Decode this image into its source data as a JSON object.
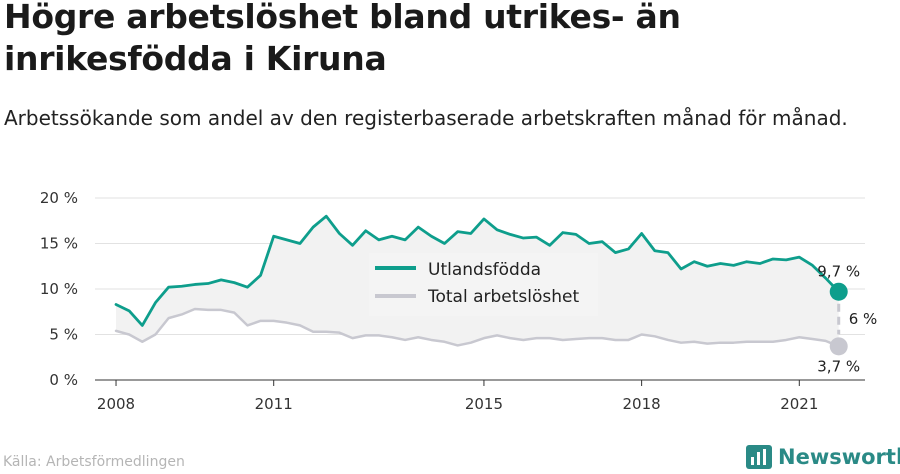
{
  "title": "Högre arbetslöshet bland utrikes- än inrikesfödda i Kiruna",
  "subtitle": "Arbetssökande som andel av den registerbaserade arbetskraften månad för månad.",
  "source": "Källa: Arbetsförmedlingen",
  "brand": "Newsworthy",
  "colors": {
    "foreign": "#0e9e8c",
    "total": "#c8c8d0",
    "band": "#f2f2f2"
  },
  "chart_data": {
    "type": "line",
    "x_unit": "year (month resolution)",
    "xlim": [
      2007.6,
      2022.25
    ],
    "ylim": [
      0,
      20
    ],
    "yticks": [
      0,
      5,
      10,
      15,
      20
    ],
    "ytick_labels": [
      "0 %",
      "5 %",
      "10 %",
      "15 %",
      "20 %"
    ],
    "xticks": [
      2008,
      2011,
      2015,
      2018,
      2021
    ],
    "xtick_labels": [
      "2008",
      "2011",
      "2015",
      "2018",
      "2021"
    ],
    "grid": "horizontal",
    "legend_position": "center",
    "series": [
      {
        "name": "Utlandsfödda",
        "color": "#0e9e8c",
        "x": [
          2008.0,
          2008.25,
          2008.5,
          2008.75,
          2009.0,
          2009.25,
          2009.5,
          2009.75,
          2010.0,
          2010.25,
          2010.5,
          2010.75,
          2011.0,
          2011.25,
          2011.5,
          2011.75,
          2012.0,
          2012.25,
          2012.5,
          2012.75,
          2013.0,
          2013.25,
          2013.5,
          2013.75,
          2014.0,
          2014.25,
          2014.5,
          2014.75,
          2015.0,
          2015.25,
          2015.5,
          2015.75,
          2016.0,
          2016.25,
          2016.5,
          2016.75,
          2017.0,
          2017.25,
          2017.5,
          2017.75,
          2018.0,
          2018.25,
          2018.5,
          2018.75,
          2019.0,
          2019.25,
          2019.5,
          2019.75,
          2020.0,
          2020.25,
          2020.5,
          2020.75,
          2021.0,
          2021.25,
          2021.5
        ],
        "values": [
          8.3,
          7.6,
          6.0,
          8.5,
          10.2,
          10.3,
          10.5,
          10.6,
          11.0,
          10.7,
          10.2,
          11.5,
          15.8,
          15.4,
          15.0,
          16.8,
          18.0,
          16.1,
          14.8,
          16.4,
          15.4,
          15.8,
          15.4,
          16.8,
          15.8,
          15.0,
          16.3,
          16.1,
          17.7,
          16.5,
          16.0,
          15.6,
          15.7,
          14.8,
          16.2,
          16.0,
          15.0,
          15.2,
          14.0,
          14.4,
          16.1,
          14.2,
          14.0,
          12.2,
          13.0,
          12.5,
          12.8,
          12.6,
          13.0,
          12.8,
          13.3,
          13.2,
          13.5,
          12.6,
          11.2
        ],
        "end_value": 9.7,
        "end_label": "9,7 %"
      },
      {
        "name": "Total arbetslöshet",
        "color": "#c8c8d0",
        "x": [
          2008.0,
          2008.25,
          2008.5,
          2008.75,
          2009.0,
          2009.25,
          2009.5,
          2009.75,
          2010.0,
          2010.25,
          2010.5,
          2010.75,
          2011.0,
          2011.25,
          2011.5,
          2011.75,
          2012.0,
          2012.25,
          2012.5,
          2012.75,
          2013.0,
          2013.25,
          2013.5,
          2013.75,
          2014.0,
          2014.25,
          2014.5,
          2014.75,
          2015.0,
          2015.25,
          2015.5,
          2015.75,
          2016.0,
          2016.25,
          2016.5,
          2016.75,
          2017.0,
          2017.25,
          2017.5,
          2017.75,
          2018.0,
          2018.25,
          2018.5,
          2018.75,
          2019.0,
          2019.25,
          2019.5,
          2019.75,
          2020.0,
          2020.25,
          2020.5,
          2020.75,
          2021.0,
          2021.25,
          2021.5
        ],
        "values": [
          5.4,
          5.0,
          4.2,
          5.0,
          6.8,
          7.2,
          7.8,
          7.7,
          7.7,
          7.4,
          6.0,
          6.5,
          6.5,
          6.3,
          6.0,
          5.3,
          5.3,
          5.2,
          4.6,
          4.9,
          4.9,
          4.7,
          4.4,
          4.7,
          4.4,
          4.2,
          3.8,
          4.1,
          4.6,
          4.9,
          4.6,
          4.4,
          4.6,
          4.6,
          4.4,
          4.5,
          4.6,
          4.6,
          4.4,
          4.4,
          5.0,
          4.8,
          4.4,
          4.1,
          4.2,
          4.0,
          4.1,
          4.1,
          4.2,
          4.2,
          4.2,
          4.4,
          4.7,
          4.5,
          4.3
        ],
        "end_value": 3.7,
        "end_label": "3,7 %"
      }
    ],
    "end_x": 2021.75,
    "gap_label": "6 %"
  }
}
